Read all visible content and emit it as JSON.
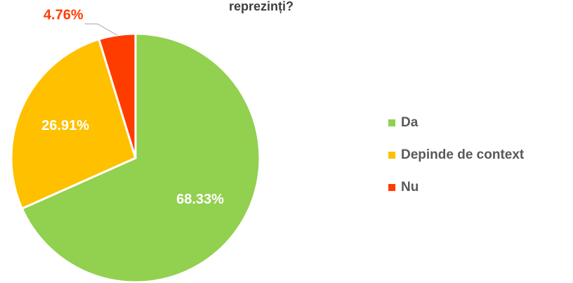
{
  "chart_data": {
    "type": "pie",
    "title": "reprezinți?",
    "categories": [
      "Da",
      "Depinde de context",
      "Nu"
    ],
    "values": [
      68.33,
      26.91,
      4.76
    ],
    "value_labels": [
      "68.33%",
      "26.91%",
      "4.76%"
    ],
    "colors": [
      "#92d050",
      "#ffc000",
      "#ff3c00"
    ],
    "legend": "right"
  }
}
